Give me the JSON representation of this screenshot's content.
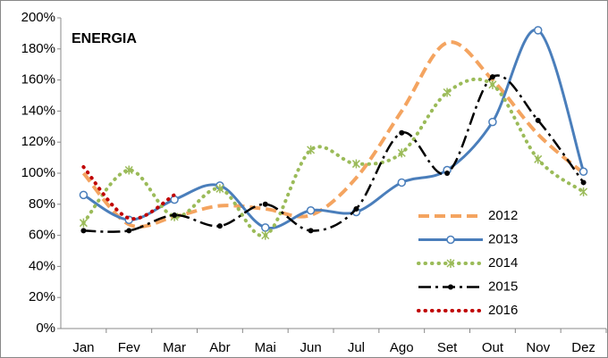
{
  "chart_data": {
    "type": "line",
    "title": "ENERGIA",
    "categories": [
      "Jan",
      "Fev",
      "Mar",
      "Abr",
      "Mai",
      "Jun",
      "Jul",
      "Ago",
      "Set",
      "Out",
      "Nov",
      "Dez"
    ],
    "series": [
      {
        "name": "2012",
        "color": "#f4a460",
        "style": "dashed",
        "marker": "none",
        "values": [
          100,
          67,
          72,
          79,
          77,
          73,
          97,
          140,
          184,
          160,
          125,
          100
        ]
      },
      {
        "name": "2013",
        "color": "#4a7ebb",
        "style": "solid",
        "marker": "circle",
        "values": [
          86,
          70,
          83,
          92,
          65,
          76,
          75,
          94,
          102,
          133,
          192,
          101
        ]
      },
      {
        "name": "2014",
        "color": "#9bbb59",
        "style": "dotted",
        "marker": "asterisk",
        "values": [
          68,
          102,
          72,
          90,
          60,
          115,
          106,
          113,
          152,
          157,
          109,
          88
        ]
      },
      {
        "name": "2015",
        "color": "#000000",
        "style": "dashdot",
        "marker": "dot",
        "values": [
          63,
          63,
          73,
          66,
          80,
          63,
          77,
          126,
          100,
          162,
          134,
          94
        ]
      },
      {
        "name": "2016",
        "color": "#c00000",
        "style": "dotted",
        "marker": "none",
        "values": [
          104,
          71,
          86,
          null,
          null,
          null,
          null,
          null,
          null,
          null,
          null,
          null
        ]
      }
    ],
    "ylim": [
      0,
      200
    ],
    "yticks": [
      {
        "value": 0,
        "label": "0%"
      },
      {
        "value": 20,
        "label": "20%"
      },
      {
        "value": 40,
        "label": "40%"
      },
      {
        "value": 60,
        "label": "60%"
      },
      {
        "value": 80,
        "label": "80%"
      },
      {
        "value": 100,
        "label": "100%"
      },
      {
        "value": 120,
        "label": "120%"
      },
      {
        "value": 140,
        "label": "140%"
      },
      {
        "value": 160,
        "label": "160%"
      },
      {
        "value": 180,
        "label": "180%"
      },
      {
        "value": 200,
        "label": "200%"
      }
    ],
    "grid": false,
    "legend": "bottom-right"
  }
}
